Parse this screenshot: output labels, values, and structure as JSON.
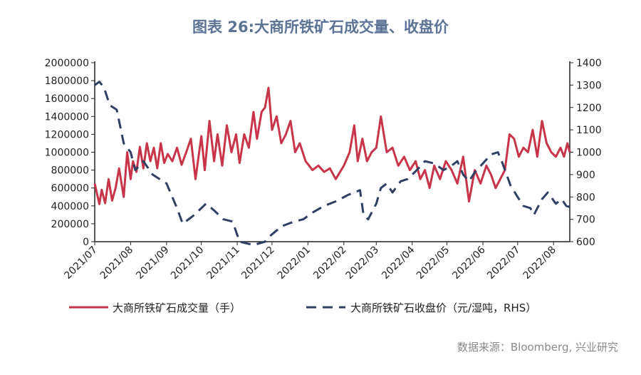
{
  "title": "图表 26:大商所铁矿石成交量、收盘价",
  "source": "数据来源：Bloomberg, 兴业研究",
  "chart_data": {
    "type": "line",
    "x_tick_labels": [
      "2021/07",
      "2021/08",
      "2021/09",
      "2021/10",
      "2021/11",
      "2021/12",
      "2022/01",
      "2022/02",
      "2022/03",
      "2022/04",
      "2022/05",
      "2022/06",
      "2022/07",
      "2022/08"
    ],
    "xlim": [
      "2021-07-01",
      "2022-08-15"
    ],
    "y_left": {
      "lim": [
        0,
        2000000
      ],
      "ticks": [
        0,
        200000,
        400000,
        600000,
        800000,
        1000000,
        1200000,
        1400000,
        1600000,
        1800000,
        2000000
      ],
      "tick_labels": [
        "0",
        "200000",
        "400000",
        "600000",
        "800000",
        "1000000",
        "1200000",
        "1400000",
        "1600000",
        "1800000",
        "2000000"
      ]
    },
    "y_right": {
      "lim": [
        600,
        1400
      ],
      "ticks": [
        600,
        700,
        800,
        900,
        1000,
        1100,
        1200,
        1300,
        1400
      ],
      "tick_labels": [
        "600",
        "700",
        "800",
        "900",
        "1000",
        "1100",
        "1200",
        "1300",
        "1400"
      ]
    },
    "grid": false,
    "legend_position": "bottom",
    "colors": {
      "volume": "#c8344a",
      "price": "#2f4063"
    },
    "series": [
      {
        "name": "大商所铁矿石成交量（手）",
        "axis": "left",
        "style": "solid",
        "x": [
          "2021-07-01",
          "2021-07-05",
          "2021-07-07",
          "2021-07-10",
          "2021-07-13",
          "2021-07-16",
          "2021-07-19",
          "2021-07-22",
          "2021-07-26",
          "2021-07-29",
          "2021-08-01",
          "2021-08-03",
          "2021-08-06",
          "2021-08-09",
          "2021-08-12",
          "2021-08-15",
          "2021-08-18",
          "2021-08-21",
          "2021-08-24",
          "2021-08-27",
          "2021-08-30",
          "2021-09-02",
          "2021-09-06",
          "2021-09-10",
          "2021-09-14",
          "2021-09-18",
          "2021-09-22",
          "2021-09-26",
          "2021-10-01",
          "2021-10-04",
          "2021-10-08",
          "2021-10-12",
          "2021-10-15",
          "2021-10-19",
          "2021-10-23",
          "2021-10-27",
          "2021-10-31",
          "2021-11-03",
          "2021-11-07",
          "2021-11-11",
          "2021-11-15",
          "2021-11-18",
          "2021-11-22",
          "2021-11-25",
          "2021-11-28",
          "2021-12-01",
          "2021-12-05",
          "2021-12-09",
          "2021-12-13",
          "2021-12-17",
          "2021-12-21",
          "2021-12-25",
          "2021-12-30",
          "2022-01-05",
          "2022-01-10",
          "2022-01-15",
          "2022-01-20",
          "2022-01-25",
          "2022-02-01",
          "2022-02-06",
          "2022-02-10",
          "2022-02-13",
          "2022-02-17",
          "2022-02-21",
          "2022-02-25",
          "2022-03-01",
          "2022-03-05",
          "2022-03-10",
          "2022-03-15",
          "2022-03-20",
          "2022-03-25",
          "2022-03-30",
          "2022-04-04",
          "2022-04-08",
          "2022-04-12",
          "2022-04-16",
          "2022-04-20",
          "2022-04-25",
          "2022-04-30",
          "2022-05-05",
          "2022-05-10",
          "2022-05-15",
          "2022-05-20",
          "2022-05-25",
          "2022-05-30",
          "2022-06-04",
          "2022-06-08",
          "2022-06-12",
          "2022-06-16",
          "2022-06-20",
          "2022-06-24",
          "2022-06-28",
          "2022-07-02",
          "2022-07-06",
          "2022-07-10",
          "2022-07-14",
          "2022-07-18",
          "2022-07-22",
          "2022-07-26",
          "2022-07-30",
          "2022-08-03",
          "2022-08-07",
          "2022-08-10",
          "2022-08-13",
          "2022-08-15"
        ],
        "values": [
          650000,
          420000,
          580000,
          430000,
          700000,
          460000,
          600000,
          820000,
          500000,
          1000000,
          700000,
          900000,
          780000,
          1060000,
          820000,
          1100000,
          900000,
          1050000,
          820000,
          1100000,
          880000,
          980000,
          900000,
          1050000,
          860000,
          1000000,
          1150000,
          700000,
          1180000,
          800000,
          1350000,
          900000,
          1200000,
          850000,
          1300000,
          1000000,
          1200000,
          880000,
          1200000,
          1050000,
          1450000,
          1150000,
          1450000,
          1500000,
          1720000,
          1250000,
          1400000,
          1100000,
          1200000,
          1350000,
          1000000,
          1100000,
          900000,
          800000,
          850000,
          780000,
          820000,
          700000,
          850000,
          1000000,
          1300000,
          900000,
          1150000,
          900000,
          1000000,
          1050000,
          1400000,
          1000000,
          1050000,
          850000,
          950000,
          800000,
          900000,
          700000,
          800000,
          600000,
          850000,
          700000,
          900000,
          800000,
          650000,
          950000,
          450000,
          800000,
          650000,
          850000,
          750000,
          600000,
          700000,
          800000,
          1200000,
          1150000,
          950000,
          1050000,
          1000000,
          1250000,
          950000,
          1350000,
          1100000,
          1000000,
          950000,
          1050000,
          950000,
          1100000,
          1000000
        ]
      },
      {
        "name": "大商所铁矿石收盘价（元/湿吨，RHS）",
        "axis": "right",
        "style": "dashed",
        "x": [
          "2021-07-01",
          "2021-07-05",
          "2021-07-09",
          "2021-07-14",
          "2021-07-20",
          "2021-07-26",
          "2021-08-01",
          "2021-08-05",
          "2021-08-12",
          "2021-08-20",
          "2021-09-01",
          "2021-09-10",
          "2021-09-15",
          "2021-09-25",
          "2021-10-05",
          "2021-10-12",
          "2021-10-20",
          "2021-10-28",
          "2021-11-03",
          "2021-11-15",
          "2021-11-25",
          "2021-11-28",
          "2021-12-05",
          "2021-12-10",
          "2021-12-20",
          "2021-12-28",
          "2022-01-05",
          "2022-01-15",
          "2022-01-25",
          "2022-02-05",
          "2022-02-15",
          "2022-02-18",
          "2022-02-22",
          "2022-03-01",
          "2022-03-05",
          "2022-03-10",
          "2022-03-15",
          "2022-03-22",
          "2022-03-28",
          "2022-04-05",
          "2022-04-12",
          "2022-04-20",
          "2022-04-28",
          "2022-05-05",
          "2022-05-10",
          "2022-05-15",
          "2022-05-20",
          "2022-05-25",
          "2022-06-01",
          "2022-06-08",
          "2022-06-14",
          "2022-06-18",
          "2022-06-25",
          "2022-07-01",
          "2022-07-06",
          "2022-07-12",
          "2022-07-15",
          "2022-07-22",
          "2022-07-27",
          "2022-08-03",
          "2022-08-08",
          "2022-08-12",
          "2022-08-15"
        ],
        "values": [
          1300,
          1315,
          1290,
          1210,
          1190,
          1040,
          1000,
          920,
          960,
          900,
          860,
          750,
          680,
          720,
          770,
          740,
          700,
          690,
          600,
          585,
          600,
          620,
          650,
          670,
          690,
          700,
          730,
          760,
          780,
          810,
          830,
          720,
          700,
          770,
          840,
          860,
          820,
          870,
          880,
          920,
          960,
          950,
          920,
          940,
          960,
          900,
          870,
          910,
          950,
          990,
          1000,
          950,
          850,
          800,
          760,
          750,
          720,
          790,
          820,
          770,
          790,
          760,
          755
        ]
      }
    ]
  }
}
